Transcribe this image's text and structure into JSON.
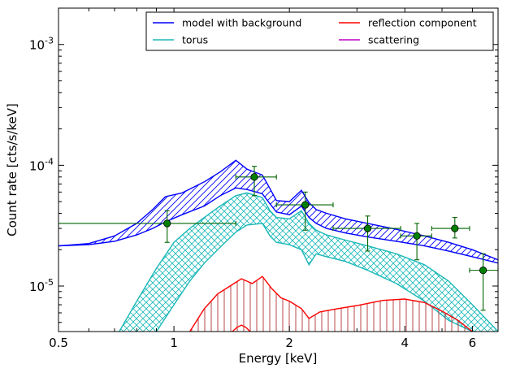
{
  "chart_data": {
    "type": "line",
    "xlabel": "Energy [keV]",
    "ylabel": "Count rate [cts/s/keV]",
    "x_scale": "log",
    "y_scale": "log",
    "xlim": [
      0.5,
      7.0
    ],
    "ylim": [
      4.2e-06,
      0.002
    ],
    "x_ticks": [
      {
        "value": 0.5,
        "label": "0.5"
      },
      {
        "value": 1,
        "label": "1"
      },
      {
        "value": 2,
        "label": "2"
      },
      {
        "value": 4,
        "label": "4"
      },
      {
        "value": 6,
        "label": "6"
      }
    ],
    "y_ticks": [
      {
        "value": 1e-05,
        "base": "10",
        "exp": "-5"
      },
      {
        "value": 0.0001,
        "base": "10",
        "exp": "-4"
      },
      {
        "value": 0.001,
        "base": "10",
        "exp": "-3"
      }
    ],
    "grid": false,
    "legend_position": "top-right",
    "colors": {
      "model": "#0000ff",
      "torus": "#1ab8b8",
      "reflection": "#ff0000",
      "scattering": "#bf00bf",
      "data": "#006400"
    },
    "legend": [
      {
        "label": "model with background",
        "color": "#0000ff"
      },
      {
        "label": "reflection component",
        "color": "#ff0000"
      },
      {
        "label": "torus",
        "color": "#1ab8b8"
      },
      {
        "label": "scattering",
        "color": "#bf00bf"
      }
    ],
    "series": [
      {
        "name": "model with background",
        "color": "#0000ff",
        "x": [
          0.5,
          0.6,
          0.7,
          0.8,
          0.88,
          0.95,
          1.05,
          1.2,
          1.32,
          1.45,
          1.55,
          1.7,
          1.78,
          1.85,
          2.0,
          2.15,
          2.25,
          2.35,
          2.5,
          2.8,
          3.2,
          3.8,
          4.5,
          5.2,
          6.0,
          7.0
        ],
        "upper": [
          2.15e-05,
          2.25e-05,
          2.6e-05,
          3.3e-05,
          4.3e-05,
          5.5e-05,
          5.9e-05,
          7.3e-05,
          8.8e-05,
          0.00011,
          9.3e-05,
          8.3e-05,
          6.4e-05,
          5.1e-05,
          5e-05,
          6.2e-05,
          4.9e-05,
          4.3e-05,
          4e-05,
          3.6e-05,
          3.3e-05,
          2.95e-05,
          2.6e-05,
          2.3e-05,
          2e-05,
          1.65e-05
        ],
        "lower": [
          2.15e-05,
          2.2e-05,
          2.35e-05,
          2.65e-05,
          3e-05,
          3.4e-05,
          3.9e-05,
          4.6e-05,
          5.6e-05,
          6.5e-05,
          6.3e-05,
          5.8e-05,
          4.8e-05,
          4.1e-05,
          3.9e-05,
          4.6e-05,
          3.7e-05,
          3.3e-05,
          3e-05,
          2.75e-05,
          2.55e-05,
          2.35e-05,
          2.15e-05,
          1.95e-05,
          1.75e-05,
          1.55e-05
        ]
      },
      {
        "name": "torus",
        "color": "#1ab8b8",
        "x": [
          0.72,
          0.8,
          0.9,
          1.0,
          1.1,
          1.2,
          1.32,
          1.45,
          1.55,
          1.7,
          1.78,
          1.85,
          2.0,
          2.15,
          2.25,
          2.35,
          2.5,
          2.8,
          3.2,
          3.8,
          4.5,
          5.2,
          6.0,
          7.0
        ],
        "upper": [
          4.2e-06,
          7.5e-06,
          1.4e-05,
          2.3e-05,
          3e-05,
          3.7e-05,
          4.6e-05,
          5.6e-05,
          5.9e-05,
          5.4e-05,
          4.2e-05,
          3.7e-05,
          3.6e-05,
          4.2e-05,
          3.3e-05,
          2.9e-05,
          2.65e-05,
          2.4e-05,
          2.15e-05,
          1.85e-05,
          1.5e-05,
          1.1e-05,
          7e-06,
          4.2e-06
        ],
        "lower": [
          null,
          null,
          4.2e-06,
          7e-06,
          1.1e-05,
          1.55e-05,
          2.1e-05,
          2.8e-05,
          3.2e-05,
          3.3e-05,
          2.6e-05,
          2.3e-05,
          2.2e-05,
          2e-05,
          1.5e-05,
          1.85e-05,
          1.75e-05,
          1.6e-05,
          1.35e-05,
          1.05e-05,
          7.5e-06,
          5.2e-06,
          4.2e-06,
          null
        ]
      },
      {
        "name": "reflection component",
        "color": "#ff0000",
        "x": [
          1.1,
          1.2,
          1.3,
          1.4,
          1.5,
          1.6,
          1.7,
          1.8,
          1.9,
          2.0,
          2.15,
          2.25,
          2.4,
          2.6,
          3.0,
          3.5,
          4.0,
          4.5,
          5.0,
          5.5,
          6.0
        ],
        "upper": [
          4.2e-06,
          6.5e-06,
          8.6e-06,
          1e-05,
          1.15e-05,
          1.05e-05,
          1.2e-05,
          9.5e-06,
          8e-06,
          7.5e-06,
          6.5e-06,
          5.4e-06,
          6.1e-06,
          6.4e-06,
          6.9e-06,
          7.6e-06,
          7.8e-06,
          7.3e-06,
          6.2e-06,
          5.2e-06,
          4.2e-06
        ],
        "lower": [
          4.2e-06,
          4.2e-06,
          4.2e-06,
          4.2e-06,
          4.2e-06,
          4.2e-06,
          4.2e-06,
          4.2e-06,
          4.2e-06,
          4.2e-06,
          4.2e-06,
          4.2e-06,
          4.2e-06,
          4.2e-06,
          4.2e-06,
          4.2e-06,
          4.2e-06,
          4.2e-06,
          4.2e-06,
          4.2e-06,
          4.2e-06
        ],
        "lower_curve_x": [
          1.42,
          1.46,
          1.5,
          1.54,
          1.58
        ],
        "lower_curve_y": [
          4.2e-06,
          4.55e-06,
          4.75e-06,
          4.55e-06,
          4.2e-06
        ]
      }
    ],
    "data_points": {
      "color": "#006400",
      "points": [
        {
          "x": 0.96,
          "y": 3.3e-05,
          "xlo": 0.5,
          "xhi": 1.45,
          "ylo": 2.3e-05,
          "yhi": 4.2e-05
        },
        {
          "x": 1.62,
          "y": 8e-05,
          "xlo": 1.45,
          "xhi": 1.85,
          "ylo": 5.6e-05,
          "yhi": 9.8e-05
        },
        {
          "x": 2.2,
          "y": 4.7e-05,
          "xlo": 1.85,
          "xhi": 2.6,
          "ylo": 2.9e-05,
          "yhi": 6e-05
        },
        {
          "x": 3.2,
          "y": 3e-05,
          "xlo": 2.6,
          "xhi": 3.9,
          "ylo": 1.95e-05,
          "yhi": 3.8e-05
        },
        {
          "x": 4.3,
          "y": 2.6e-05,
          "xlo": 3.9,
          "xhi": 4.7,
          "ylo": 1.65e-05,
          "yhi": 3.3e-05
        },
        {
          "x": 5.4,
          "y": 3e-05,
          "xlo": 4.7,
          "xhi": 5.9,
          "ylo": 2.5e-05,
          "yhi": 3.7e-05
        },
        {
          "x": 6.4,
          "y": 1.35e-05,
          "xlo": 5.9,
          "xhi": 7.0,
          "ylo": 6.3e-06,
          "yhi": 1.85e-05
        }
      ]
    }
  }
}
